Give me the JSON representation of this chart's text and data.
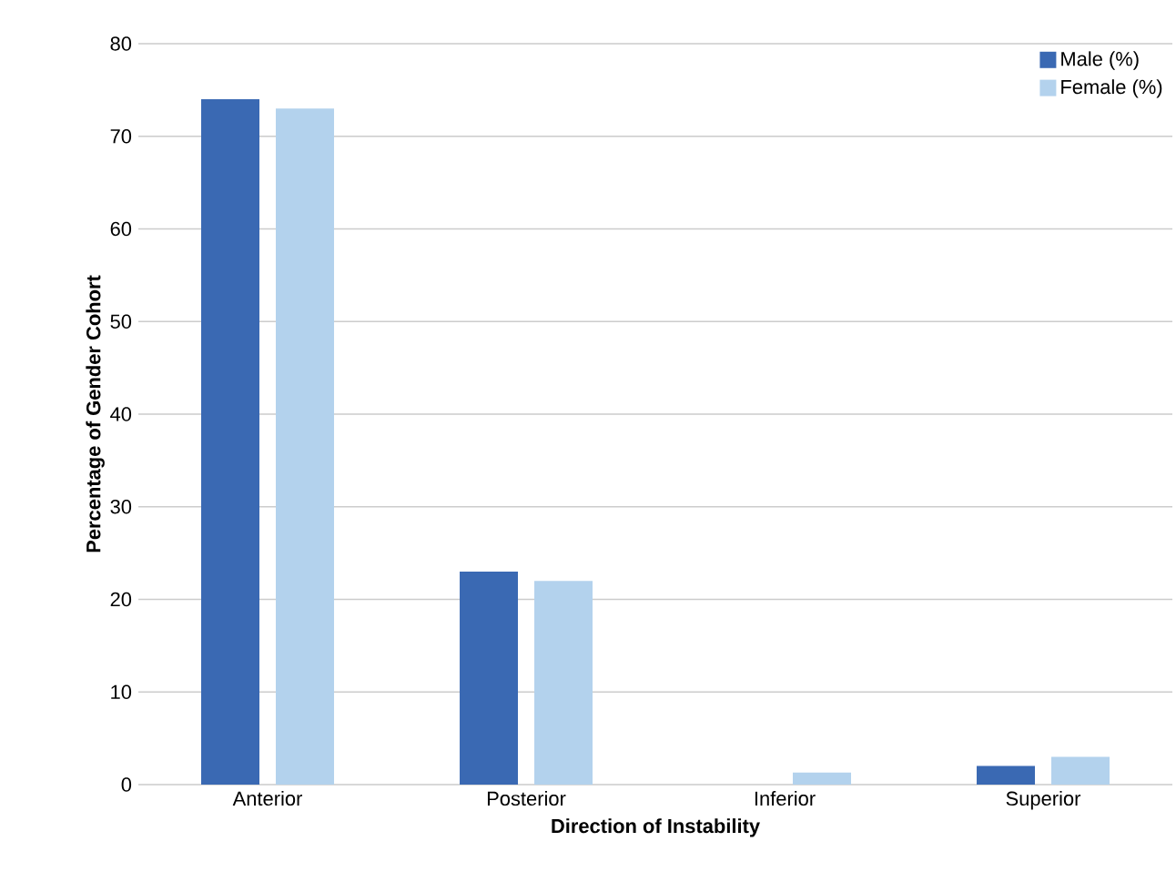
{
  "chart_data": {
    "type": "bar",
    "xlabel": "Direction of Instability",
    "ylabel": "Percentage of Gender Cohort",
    "categories": [
      "Anterior",
      "Posterior",
      "Inferior",
      "Superior"
    ],
    "series": [
      {
        "name": "Male (%)",
        "color": "#3a69b3",
        "values": [
          74,
          23,
          0,
          2
        ]
      },
      {
        "name": "Female (%)",
        "color": "#b3d2ed",
        "values": [
          73,
          22,
          1.3,
          3
        ]
      }
    ],
    "ylim": [
      0,
      80
    ],
    "yticks": [
      0,
      10,
      20,
      30,
      40,
      50,
      60,
      70,
      80
    ],
    "grid": "y",
    "legend": "top right"
  }
}
